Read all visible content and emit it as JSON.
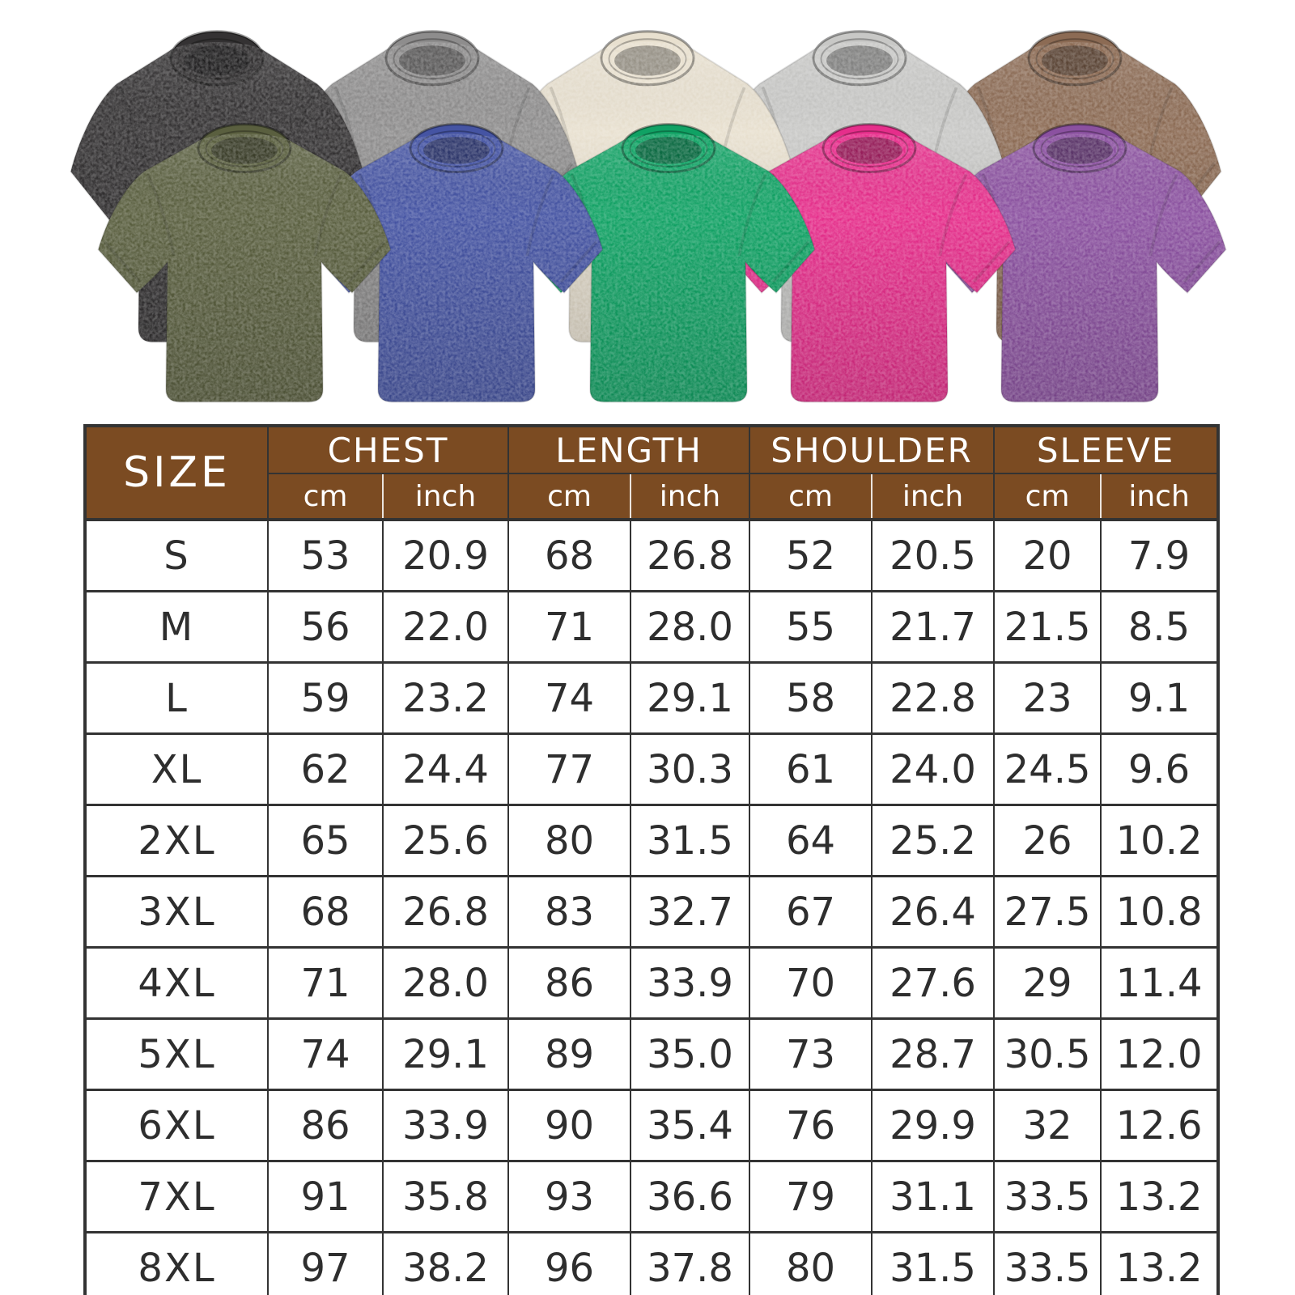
{
  "document": {
    "background": "#ffffff"
  },
  "products": {
    "description": "washed oversized t-shirts",
    "back_row": [
      {
        "name": "washed-black",
        "hex": "#343233"
      },
      {
        "name": "heather-gray",
        "hex": "#8e8d8d"
      },
      {
        "name": "cream-beige",
        "hex": "#e8e0cf"
      },
      {
        "name": "light-gray",
        "hex": "#c8c8c6"
      },
      {
        "name": "vintage-brown",
        "hex": "#8c6b54"
      }
    ],
    "front_row": [
      {
        "name": "army-green",
        "hex": "#5a5f3f"
      },
      {
        "name": "washed-blue",
        "hex": "#4554a3"
      },
      {
        "name": "kelly-green",
        "hex": "#10a264"
      },
      {
        "name": "rose-pink",
        "hex": "#e62e8b"
      },
      {
        "name": "washed-purple",
        "hex": "#8b51a0"
      }
    ]
  },
  "size_chart": {
    "header": {
      "size_label": "SIZE",
      "groups": [
        "CHEST",
        "LENGTH",
        "SHOULDER",
        "SLEEVE"
      ],
      "unit_cm": "cm",
      "unit_inch": "inch",
      "header_bg": "#7b4b22",
      "header_text": "#ffffff"
    },
    "rows": [
      {
        "size": "S",
        "values": [
          "53",
          "20.9",
          "68",
          "26.8",
          "52",
          "20.5",
          "20",
          "7.9"
        ]
      },
      {
        "size": "M",
        "values": [
          "56",
          "22.0",
          "71",
          "28.0",
          "55",
          "21.7",
          "21.5",
          "8.5"
        ]
      },
      {
        "size": "L",
        "values": [
          "59",
          "23.2",
          "74",
          "29.1",
          "58",
          "22.8",
          "23",
          "9.1"
        ]
      },
      {
        "size": "XL",
        "values": [
          "62",
          "24.4",
          "77",
          "30.3",
          "61",
          "24.0",
          "24.5",
          "9.6"
        ]
      },
      {
        "size": "2XL",
        "values": [
          "65",
          "25.6",
          "80",
          "31.5",
          "64",
          "25.2",
          "26",
          "10.2"
        ]
      },
      {
        "size": "3XL",
        "values": [
          "68",
          "26.8",
          "83",
          "32.7",
          "67",
          "26.4",
          "27.5",
          "10.8"
        ]
      },
      {
        "size": "4XL",
        "values": [
          "71",
          "28.0",
          "86",
          "33.9",
          "70",
          "27.6",
          "29",
          "11.4"
        ]
      },
      {
        "size": "5XL",
        "values": [
          "74",
          "29.1",
          "89",
          "35.0",
          "73",
          "28.7",
          "30.5",
          "12.0"
        ]
      },
      {
        "size": "6XL",
        "values": [
          "86",
          "33.9",
          "90",
          "35.4",
          "76",
          "29.9",
          "32",
          "12.6"
        ]
      },
      {
        "size": "7XL",
        "values": [
          "91",
          "35.8",
          "93",
          "36.6",
          "79",
          "31.1",
          "33.5",
          "13.2"
        ]
      },
      {
        "size": "8XL",
        "values": [
          "97",
          "38.2",
          "96",
          "37.8",
          "80",
          "31.5",
          "33.5",
          "13.2"
        ]
      }
    ]
  }
}
